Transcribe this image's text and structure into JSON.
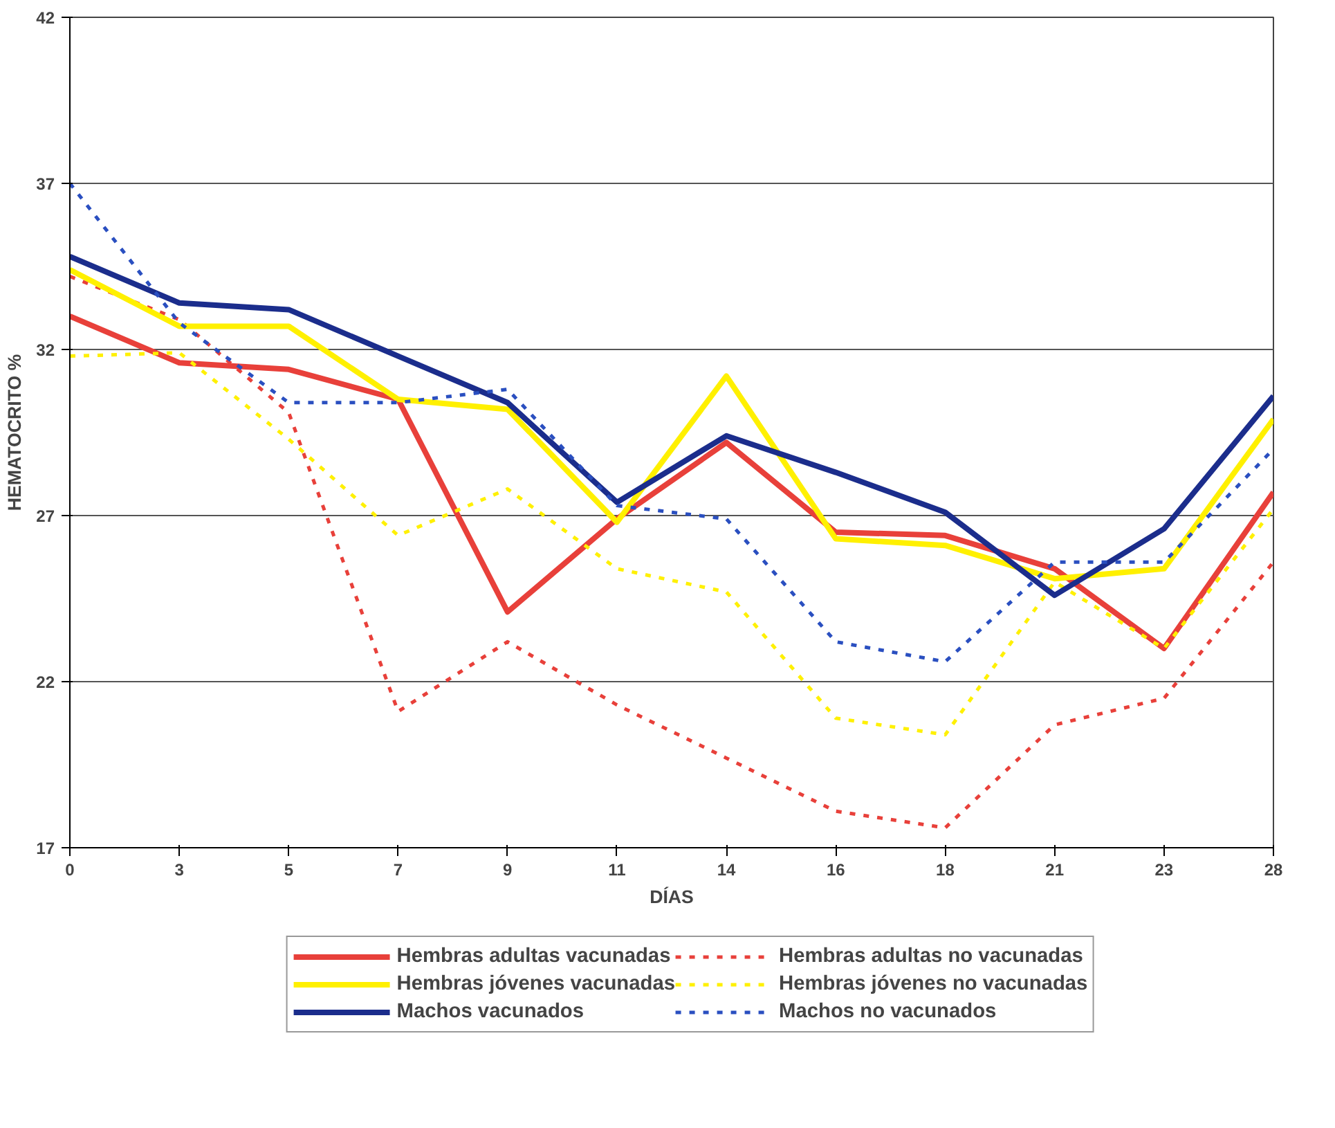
{
  "chart_data": {
    "type": "line",
    "xlabel": "DÍAS",
    "ylabel": "HEMATOCRITO %",
    "categories": [
      "0",
      "3",
      "5",
      "7",
      "9",
      "11",
      "14",
      "16",
      "18",
      "21",
      "23",
      "28"
    ],
    "ylim": [
      17,
      42
    ],
    "yticks": [
      17,
      22,
      27,
      32,
      37,
      42
    ],
    "grid": "y",
    "legend": "bottom",
    "marker": "none",
    "series": [
      {
        "name": "Hembras adultas vacunadas",
        "color": "#e8403a",
        "line_style": "solid",
        "values": [
          33.0,
          31.6,
          31.4,
          30.5,
          24.1,
          26.9,
          29.2,
          26.5,
          26.4,
          25.4,
          23.0,
          27.7
        ]
      },
      {
        "name": "Hembras adultas no vacunadas",
        "color": "#e8403a",
        "line_style": "dashed",
        "values": [
          34.2,
          32.9,
          30.1,
          21.1,
          23.2,
          21.3,
          19.7,
          18.1,
          17.6,
          20.7,
          21.5,
          25.6
        ]
      },
      {
        "name": "Hembras jóvenes vacunadas",
        "color": "#fff000",
        "line_style": "solid",
        "values": [
          34.4,
          32.7,
          32.7,
          30.5,
          30.2,
          26.8,
          31.2,
          26.3,
          26.1,
          25.1,
          25.4,
          29.9
        ]
      },
      {
        "name": "Hembras jóvenes no vacunadas",
        "color": "#fff000",
        "line_style": "dashed",
        "values": [
          31.8,
          31.9,
          29.3,
          26.4,
          27.8,
          25.4,
          24.7,
          20.9,
          20.4,
          25.0,
          23.0,
          27.2
        ]
      },
      {
        "name": "Machos vacunados",
        "color": "#1b2d8c",
        "line_style": "solid",
        "values": [
          34.8,
          33.4,
          33.2,
          31.8,
          30.4,
          27.4,
          29.4,
          28.3,
          27.1,
          24.6,
          26.6,
          30.6
        ]
      },
      {
        "name": "Machos no vacunados",
        "color": "#2a4fc0",
        "line_style": "dashed",
        "values": [
          37.0,
          32.8,
          30.4,
          30.4,
          30.8,
          27.3,
          26.9,
          23.2,
          22.6,
          25.6,
          25.6,
          29.0
        ]
      }
    ]
  }
}
